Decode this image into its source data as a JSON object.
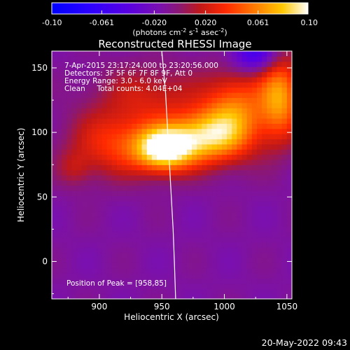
{
  "chart_data": {
    "type": "heatmap",
    "title": "Reconstructed RHESSI Image",
    "xlabel": "Heliocentric X (arcsec)",
    "ylabel": "Heliocentric Y (arcsec)",
    "xlim": [
      862,
      1054
    ],
    "ylim": [
      -29,
      163
    ],
    "x_ticks": [
      900,
      950,
      1000,
      1050
    ],
    "y_ticks": [
      0,
      50,
      100,
      150
    ],
    "colorbar": {
      "range": [
        -0.1,
        0.1
      ],
      "tick_values": [
        -0.1,
        -0.061,
        -0.02,
        0.02,
        0.061,
        0.1
      ],
      "tick_labels": [
        "-0.10",
        "-0.061",
        "-0.020",
        "0.020",
        "0.061",
        "0.10"
      ],
      "unit_parts": [
        "(photons cm",
        "-2",
        " s",
        "-1",
        " asec",
        "-2",
        ")"
      ]
    },
    "info_lines": [
      "7-Apr-2015 23:17:24.000 to 23:20:56.000",
      "Detectors: 3F 5F 6F 7F 8F 9F, Att 0",
      "Energy Range: 3.0 - 6.0 keV",
      "Clean     Total counts: 4.04E+04"
    ],
    "peak_label": "Position of Peak = [958,85]",
    "peak": [
      958,
      85
    ],
    "limb_curve": [
      [
        950,
        163
      ],
      [
        953,
        130
      ],
      [
        955,
        95
      ],
      [
        957,
        60
      ],
      [
        959,
        25
      ],
      [
        960,
        0
      ],
      [
        961,
        -29
      ]
    ],
    "sources": [
      {
        "x": 952,
        "y": 87,
        "sx": 16,
        "sy": 12,
        "amp": 0.1
      },
      {
        "x": 985,
        "y": 97,
        "sx": 22,
        "sy": 15,
        "amp": 0.085
      },
      {
        "x": 915,
        "y": 92,
        "sx": 26,
        "sy": 18,
        "amp": 0.05
      },
      {
        "x": 1010,
        "y": 118,
        "sx": 18,
        "sy": 22,
        "amp": 0.06
      },
      {
        "x": 1045,
        "y": 128,
        "sx": 12,
        "sy": 24,
        "amp": 0.075
      },
      {
        "x": 940,
        "y": 130,
        "sx": 30,
        "sy": 16,
        "amp": 0.03
      },
      {
        "x": 880,
        "y": 72,
        "sx": 10,
        "sy": 10,
        "amp": 0.02
      }
    ],
    "background_level": -0.012,
    "negative_dip": {
      "x": 1025,
      "y": 160,
      "sx": 14,
      "sy": 10,
      "amp": -0.05
    }
  },
  "footer_timestamp": "20-May-2022 09:43"
}
